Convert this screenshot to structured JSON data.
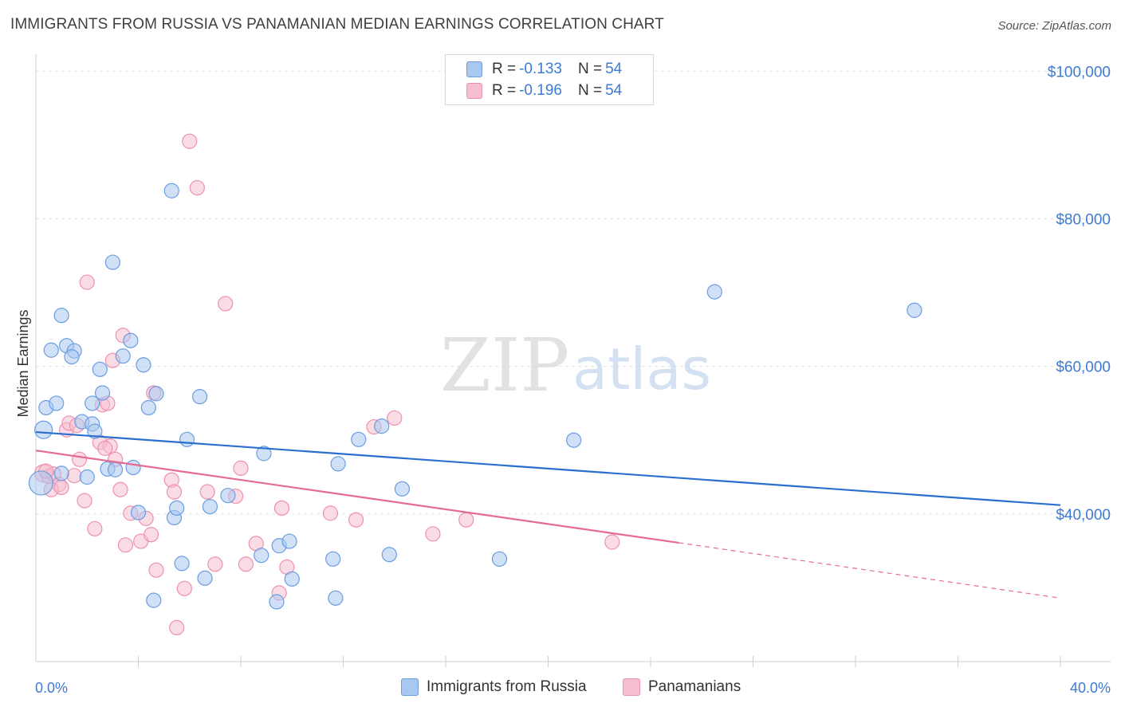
{
  "header": {
    "title": "IMMIGRANTS FROM RUSSIA VS PANAMANIAN MEDIAN EARNINGS CORRELATION CHART",
    "source": "Source: ZipAtlas.com"
  },
  "watermark": {
    "zip": "ZIP",
    "atlas": "atlas"
  },
  "legend": {
    "series1": {
      "r_label": "R = ",
      "r_value": "-0.133",
      "n_label": "N = ",
      "n_value": "54"
    },
    "series2": {
      "r_label": "R = ",
      "r_value": "-0.196",
      "n_label": "N = ",
      "n_value": "54"
    }
  },
  "colors": {
    "blue_fill": "#a9c8f0",
    "blue_stroke": "#6a9de0",
    "blue_line": "#2a6fcf",
    "pink_fill": "#f6bfd0",
    "pink_stroke": "#ee91ae",
    "pink_line": "#e56a94"
  },
  "chart_data": {
    "type": "scatter",
    "title": "IMMIGRANTS FROM RUSSIA VS PANAMANIAN MEDIAN EARNINGS CORRELATION CHART",
    "xlabel": "",
    "ylabel": "Median Earnings",
    "xlim": [
      0,
      40
    ],
    "ylim": [
      20000,
      101000
    ],
    "x_tick_labels": [
      "0.0%",
      "40.0%"
    ],
    "y_ticks": [
      40000,
      60000,
      80000,
      100000
    ],
    "y_tick_labels": [
      "$40,000",
      "$60,000",
      "$80,000",
      "$100,000"
    ],
    "legend_position": "top-center",
    "series": [
      {
        "name": "Immigrants from Russia",
        "color": "#6a9de0",
        "r": -0.133,
        "n": 54,
        "points": [
          [
            0.2,
            44.2
          ],
          [
            0.3,
            51.4
          ],
          [
            0.4,
            54.4
          ],
          [
            0.8,
            55.0
          ],
          [
            0.6,
            62.2
          ],
          [
            1.0,
            66.9
          ],
          [
            1.2,
            62.8
          ],
          [
            1.5,
            62.1
          ],
          [
            1.4,
            61.3
          ],
          [
            2.5,
            59.6
          ],
          [
            1.8,
            52.5
          ],
          [
            2.2,
            52.2
          ],
          [
            2.3,
            51.2
          ],
          [
            2.6,
            56.4
          ],
          [
            2.2,
            55.0
          ],
          [
            3.4,
            61.4
          ],
          [
            3.7,
            63.5
          ],
          [
            3.0,
            74.1
          ],
          [
            4.2,
            60.2
          ],
          [
            4.4,
            54.4
          ],
          [
            4.7,
            56.3
          ],
          [
            3.8,
            46.3
          ],
          [
            2.8,
            46.1
          ],
          [
            3.1,
            46.0
          ],
          [
            4.0,
            40.2
          ],
          [
            5.3,
            83.8
          ],
          [
            5.4,
            39.5
          ],
          [
            5.5,
            40.8
          ],
          [
            5.7,
            33.3
          ],
          [
            5.9,
            50.1
          ],
          [
            6.4,
            55.9
          ],
          [
            6.6,
            31.3
          ],
          [
            6.8,
            41.0
          ],
          [
            7.5,
            42.5
          ],
          [
            8.8,
            34.4
          ],
          [
            8.9,
            48.2
          ],
          [
            9.4,
            28.1
          ],
          [
            9.5,
            35.7
          ],
          [
            9.9,
            36.3
          ],
          [
            10.0,
            31.2
          ],
          [
            4.6,
            28.3
          ],
          [
            11.6,
            33.9
          ],
          [
            11.7,
            28.6
          ],
          [
            11.8,
            46.8
          ],
          [
            12.6,
            50.1
          ],
          [
            13.5,
            51.9
          ],
          [
            13.8,
            34.5
          ],
          [
            14.3,
            43.4
          ],
          [
            18.1,
            33.9
          ],
          [
            21.0,
            50.0
          ],
          [
            26.5,
            70.1
          ],
          [
            34.3,
            67.6
          ],
          [
            2.0,
            45.0
          ],
          [
            1.0,
            45.5
          ]
        ]
      },
      {
        "name": "Panamanians",
        "color": "#ee91ae",
        "r": -0.196,
        "n": 54,
        "points": [
          [
            0.3,
            45.5
          ],
          [
            0.5,
            45.1
          ],
          [
            0.7,
            45.4
          ],
          [
            0.9,
            44.0
          ],
          [
            0.6,
            43.3
          ],
          [
            1.0,
            43.6
          ],
          [
            1.2,
            51.4
          ],
          [
            1.3,
            52.3
          ],
          [
            1.5,
            45.2
          ],
          [
            1.7,
            47.4
          ],
          [
            1.9,
            41.8
          ],
          [
            2.0,
            71.4
          ],
          [
            2.3,
            38.0
          ],
          [
            2.5,
            49.7
          ],
          [
            2.6,
            54.8
          ],
          [
            2.8,
            55.0
          ],
          [
            2.9,
            49.2
          ],
          [
            3.0,
            60.8
          ],
          [
            3.1,
            47.4
          ],
          [
            3.3,
            43.3
          ],
          [
            3.4,
            64.2
          ],
          [
            3.5,
            35.8
          ],
          [
            3.7,
            40.1
          ],
          [
            4.1,
            36.3
          ],
          [
            4.3,
            39.4
          ],
          [
            4.5,
            37.2
          ],
          [
            4.6,
            56.4
          ],
          [
            4.7,
            32.4
          ],
          [
            5.3,
            44.6
          ],
          [
            5.4,
            43.0
          ],
          [
            5.8,
            29.9
          ],
          [
            6.0,
            90.5
          ],
          [
            6.3,
            84.2
          ],
          [
            6.7,
            43.0
          ],
          [
            7.0,
            33.2
          ],
          [
            7.4,
            68.5
          ],
          [
            7.8,
            42.4
          ],
          [
            8.0,
            46.2
          ],
          [
            8.2,
            33.2
          ],
          [
            8.6,
            36.0
          ],
          [
            9.5,
            29.3
          ],
          [
            9.6,
            40.8
          ],
          [
            9.8,
            32.8
          ],
          [
            11.5,
            40.1
          ],
          [
            12.5,
            39.2
          ],
          [
            13.2,
            51.8
          ],
          [
            14.0,
            53.0
          ],
          [
            15.5,
            37.3
          ],
          [
            16.8,
            39.2
          ],
          [
            22.5,
            36.2
          ],
          [
            5.5,
            24.6
          ],
          [
            1.6,
            52.0
          ],
          [
            0.4,
            45.8
          ],
          [
            2.7,
            48.9
          ]
        ]
      }
    ],
    "trend_lines": [
      {
        "series": "Immigrants from Russia",
        "x_start": 0.0,
        "y_start": 51100,
        "x_end": 40.0,
        "y_end": 41200,
        "style": "solid"
      },
      {
        "series": "Panamanians",
        "x_start": 0.0,
        "y_start": 48600,
        "x_end": 25.1,
        "y_end": 36100,
        "style": "solid"
      },
      {
        "series": "Panamanians",
        "x_start": 25.1,
        "y_start": 36100,
        "x_end": 40.0,
        "y_end": 28600,
        "style": "dashed"
      }
    ]
  },
  "bottom_legend": {
    "series1_label": "Immigrants from Russia",
    "series2_label": "Panamanians"
  }
}
